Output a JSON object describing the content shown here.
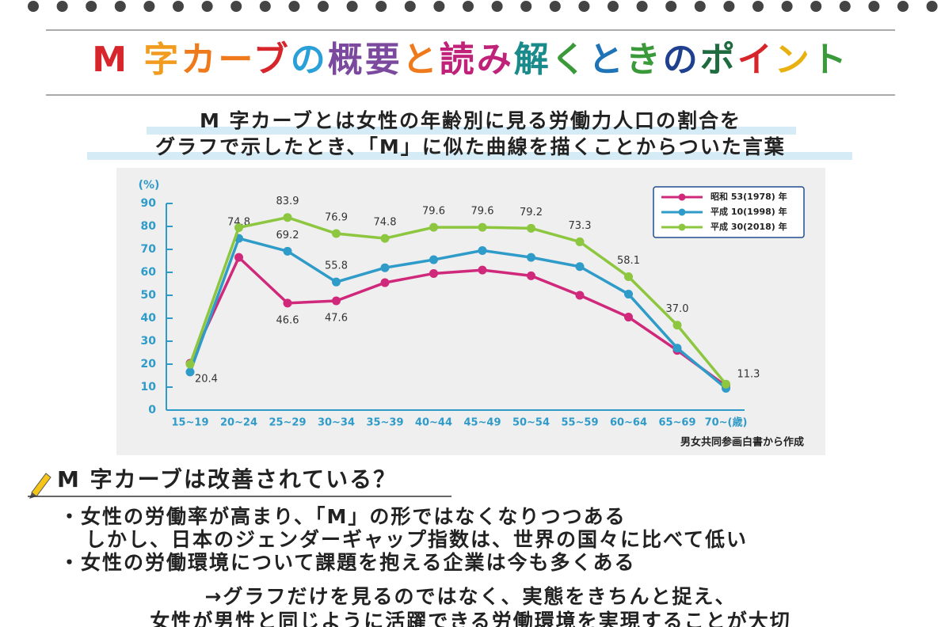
{
  "header": {
    "title": "M 字カーブの概要と読み解くときのポイント",
    "title_colors": [
      "#d7262b",
      "#d7262b",
      "#f29c1f",
      "#ee7a1b",
      "#ee7a1b",
      "#d7262b",
      "#2aa0d8",
      "#7b4a9e",
      "#7b4a9e",
      "#ee7a1b",
      "#c0227a",
      "#c0227a",
      "#1a8a8a",
      "#3a9a3a",
      "#1f73b7",
      "#3a9a3a",
      "#1f3f8f",
      "#1f6b3f",
      "#d7262b",
      "#e8b10f",
      "#3a9a3a"
    ],
    "subtitle": [
      "M 字カーブとは女性の年齢別に見る労働力人口の割合を",
      "グラフで示したとき、「M」に似た曲線を描くことからついた言葉"
    ]
  },
  "chart_data": {
    "type": "line",
    "y_label": "(%)",
    "source": "男女共同参画白書から作成",
    "categories": [
      "15~19",
      "20~24",
      "25~29",
      "30~34",
      "35~39",
      "40~44",
      "45~49",
      "50~54",
      "55~59",
      "60~64",
      "65~69",
      "70~(歳)"
    ],
    "ylim": [
      0,
      90
    ],
    "yticks": [
      0,
      10,
      20,
      30,
      40,
      50,
      60,
      70,
      80,
      90
    ],
    "legend": "upper right",
    "series": [
      {
        "name": "昭和 53(1978) 年",
        "color": "#d0287a",
        "values": [
          20.4,
          66.5,
          46.6,
          47.6,
          55.5,
          59.5,
          61.0,
          58.5,
          50.0,
          40.5,
          26.0,
          10.5
        ],
        "value_labels": [
          "20.4",
          null,
          "46.6",
          "47.6",
          null,
          null,
          null,
          null,
          null,
          null,
          null,
          null
        ]
      },
      {
        "name": "平成 10(1998) 年",
        "color": "#2f9bc9",
        "values": [
          16.6,
          74.8,
          69.2,
          55.8,
          62.0,
          65.5,
          69.5,
          66.5,
          62.5,
          50.5,
          27.0,
          9.5
        ],
        "value_labels": [
          null,
          "74.8",
          "69.2",
          "55.8",
          null,
          null,
          null,
          null,
          null,
          null,
          null,
          null
        ]
      },
      {
        "name": "平成 30(2018) 年",
        "color": "#8dc63f",
        "values": [
          20.0,
          79.5,
          83.9,
          76.9,
          74.8,
          79.6,
          79.6,
          79.2,
          73.3,
          58.1,
          37.0,
          11.3
        ],
        "value_labels": [
          null,
          null,
          "83.9",
          "76.9",
          "74.8",
          "79.6",
          "79.6",
          "79.2",
          "73.3",
          "58.1",
          "37.0",
          "11.3"
        ]
      }
    ]
  },
  "body": {
    "heading": "M 字カーブは改善されている？",
    "bullets": [
      "・女性の労働率が高まり、「M」の形ではなくなりつつある",
      "しかし、日本のジェンダーギャップ指数は、世界の国々に比べて低い",
      "・女性の労働環境について課題を抱える企業は今も多くある"
    ],
    "conclusion": [
      "→グラフだけを見るのではなく、実態をきちんと捉え、",
      "女性が男性と同じように活躍できる労働環境を実現することが大切"
    ]
  }
}
